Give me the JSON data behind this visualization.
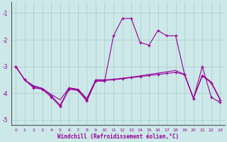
{
  "xlabel": "Windchill (Refroidissement éolien,°C)",
  "bg_color": "#cce8e8",
  "grid_color": "#aacccc",
  "line_color": "#990099",
  "x": [
    0,
    1,
    2,
    3,
    4,
    5,
    6,
    7,
    8,
    9,
    10,
    11,
    12,
    13,
    14,
    15,
    16,
    17,
    18,
    19,
    20,
    21,
    22,
    23
  ],
  "line1": [
    -3.0,
    -3.5,
    -3.8,
    -3.85,
    -4.15,
    -4.5,
    -3.85,
    -3.9,
    -4.3,
    -3.55,
    -3.55,
    -1.85,
    -1.2,
    -1.2,
    -2.1,
    -2.2,
    -1.65,
    -1.85,
    -1.85,
    -3.3,
    -4.2,
    -3.0,
    -4.15,
    -4.35
  ],
  "line2": [
    -3.0,
    -3.5,
    -3.75,
    -3.85,
    -4.1,
    -4.45,
    -3.82,
    -3.88,
    -4.25,
    -3.52,
    -3.52,
    -3.5,
    -3.46,
    -3.42,
    -3.38,
    -3.34,
    -3.3,
    -3.26,
    -3.22,
    -3.3,
    -4.2,
    -3.35,
    -3.62,
    -4.25
  ],
  "line3": [
    -3.0,
    -3.5,
    -3.72,
    -3.82,
    -4.05,
    -4.25,
    -3.8,
    -3.85,
    -4.2,
    -3.5,
    -3.5,
    -3.48,
    -3.44,
    -3.4,
    -3.35,
    -3.3,
    -3.25,
    -3.2,
    -3.15,
    -3.3,
    -4.18,
    -3.32,
    -3.58,
    -4.22
  ],
  "ylim": [
    -5.2,
    -0.6
  ],
  "yticks": [
    -5,
    -4,
    -3,
    -2,
    -1
  ],
  "xticks": [
    0,
    1,
    2,
    3,
    4,
    5,
    6,
    7,
    8,
    9,
    10,
    11,
    12,
    13,
    14,
    15,
    16,
    17,
    18,
    19,
    20,
    21,
    22,
    23
  ]
}
